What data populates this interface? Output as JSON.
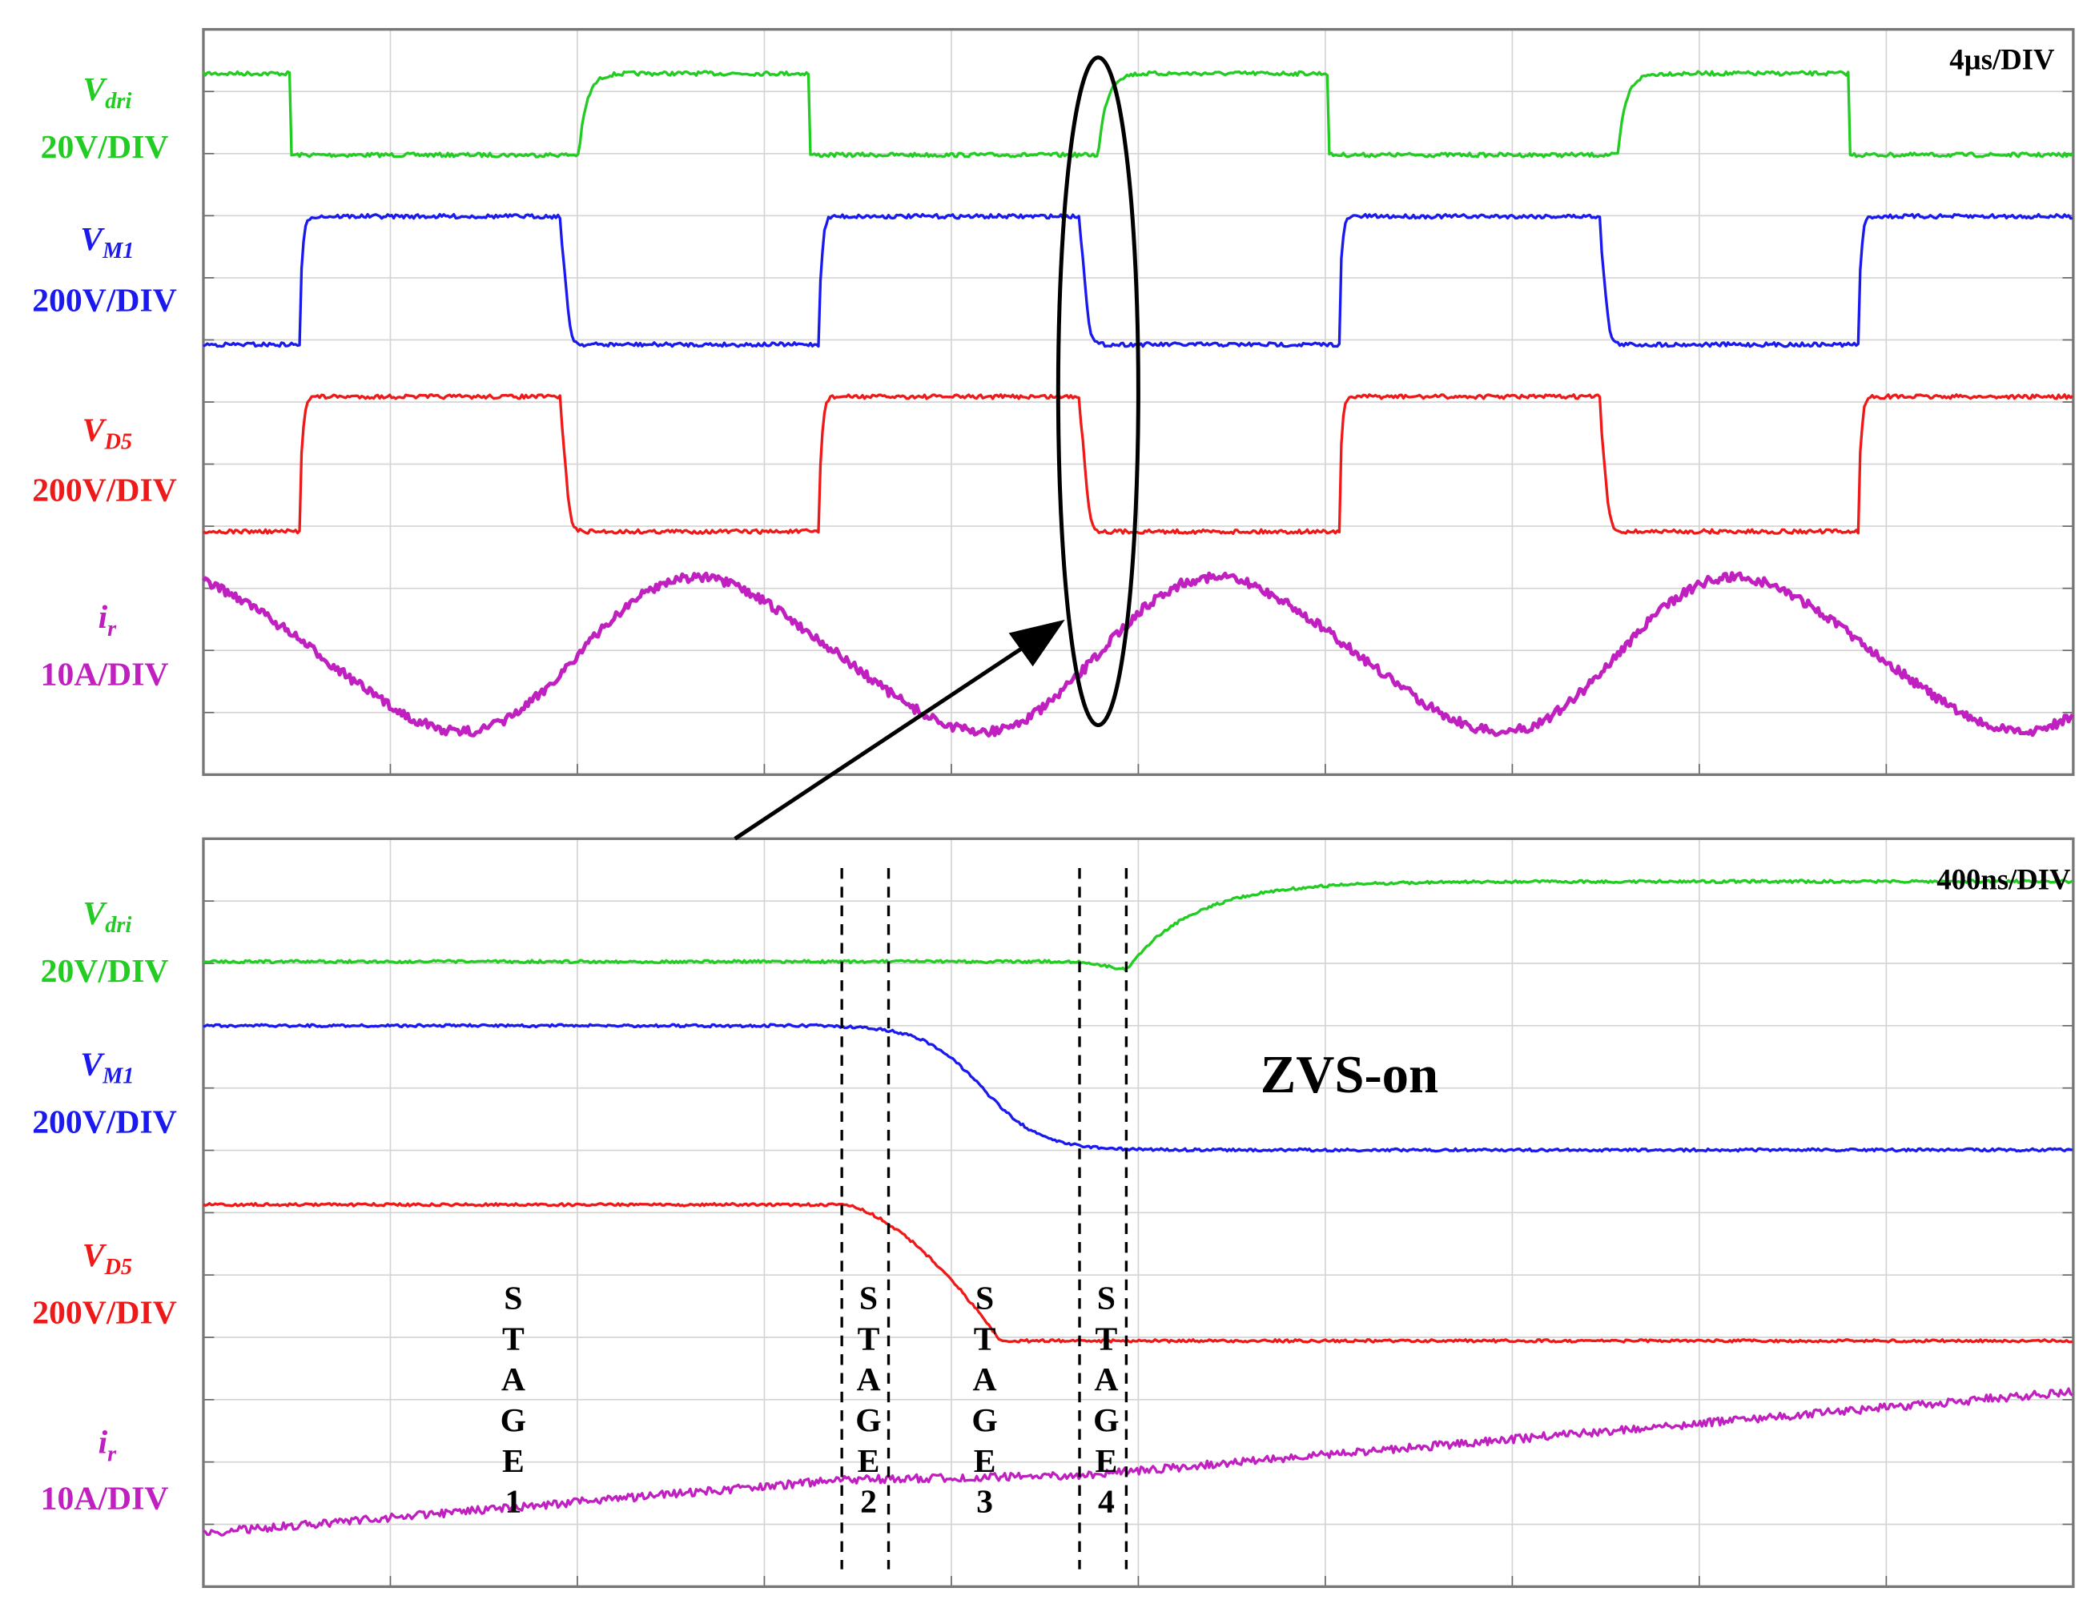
{
  "panels": [
    {
      "timebase": "4µs/DIV",
      "channels": [
        {
          "symbol": "V",
          "subscript": "dri",
          "scale": "20V/DIV"
        },
        {
          "symbol": "V",
          "subscript": "M1",
          "scale": "200V/DIV"
        },
        {
          "symbol": "V",
          "subscript": "D5",
          "scale": "200V/DIV"
        },
        {
          "symbol": "i",
          "subscript": "r",
          "scale": "10A/DIV"
        }
      ]
    },
    {
      "timebase": "400ns/DIV",
      "annotation": "ZVS-on",
      "channels": [
        {
          "symbol": "V",
          "subscript": "dri",
          "scale": "20V/DIV"
        },
        {
          "symbol": "V",
          "subscript": "M1",
          "scale": "200V/DIV"
        },
        {
          "symbol": "V",
          "subscript": "D5",
          "scale": "200V/DIV"
        },
        {
          "symbol": "i",
          "subscript": "r",
          "scale": "10A/DIV"
        }
      ],
      "stages": [
        "STAGE1",
        "STAGE2",
        "STAGE3",
        "STAGE4"
      ]
    }
  ]
}
